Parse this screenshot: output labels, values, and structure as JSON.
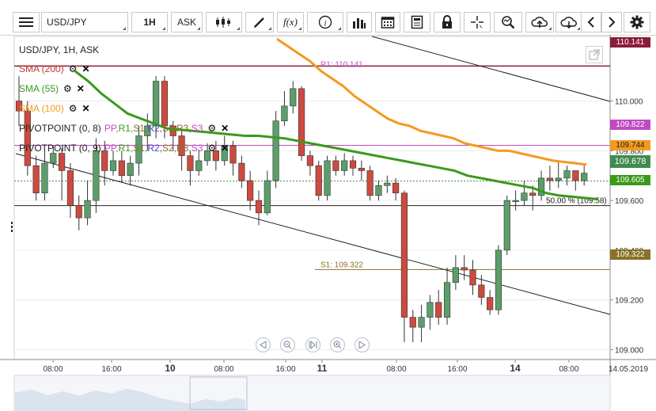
{
  "toolbar": {
    "symbol": "USD/JPY",
    "interval": "1H",
    "price_side": "ASK",
    "icons": [
      "menu-icon",
      "candles-icon",
      "draw-icon",
      "fx-icon",
      "info-icon",
      "bars-icon",
      "calendar-icon",
      "notes-icon",
      "lock-icon",
      "crosshair-icon",
      "zoom-icon",
      "upload-icon",
      "download-icon",
      "prev-icon",
      "next-icon",
      "settings-icon"
    ]
  },
  "legend": {
    "title": "USD/JPY, 1H, ASK",
    "sma200": "SMA (200)",
    "sma55": "SMA (55)",
    "sma100": "SMA (100)",
    "pivot1": "PIVOTPOINT (0, 8)",
    "pivot2": "PIVOTPOINT (0, 9)",
    "pivot_items": [
      "PP,",
      "R1,",
      "S1,",
      "R2,",
      "S2,",
      "R3,",
      "S3"
    ]
  },
  "colors": {
    "sma55": "#3a9a1a",
    "sma100": "#f39a1e",
    "sma200": "#c0392b",
    "bull": "#5c9e6a",
    "bear": "#cd4a3f",
    "pivot_r1": "#c04bc0",
    "pivot_s1": "#8a7128",
    "last_price": "#3f8a4c"
  },
  "price_tags": {
    "top": "110.141",
    "r1": "109.822",
    "sma100": "109.744",
    "last": "109.678",
    "sma55": "109.605",
    "s1": "109.322"
  },
  "annotations": {
    "s1_label": "S1: 109.322",
    "r1_label": "R1: 110.141",
    "fib_label": "50.00 % (109.58)"
  },
  "chart_data": {
    "type": "candlestick",
    "title": "USD/JPY, 1H, ASK",
    "y_ticks": [
      "110.000",
      "109.800",
      "109.600",
      "109.400",
      "109.200",
      "109.000"
    ],
    "ylim": [
      108.96,
      110.26
    ],
    "x_ticks": [
      "08:00",
      "16:00",
      "10",
      "08:00",
      "16:00",
      "11",
      "08:00",
      "16:00",
      "14",
      "08:00",
      "14.05.2019"
    ],
    "candles": [
      [
        110.0,
        109.96,
        110.1,
        109.9
      ],
      [
        109.96,
        109.74,
        110.0,
        109.7
      ],
      [
        109.74,
        109.63,
        109.78,
        109.6
      ],
      [
        109.63,
        109.75,
        109.8,
        109.6
      ],
      [
        109.75,
        109.79,
        109.82,
        109.73
      ],
      [
        109.79,
        109.72,
        109.81,
        109.6
      ],
      [
        109.72,
        109.58,
        109.75,
        109.53
      ],
      [
        109.58,
        109.53,
        109.62,
        109.48
      ],
      [
        109.53,
        109.6,
        109.68,
        109.5
      ],
      [
        109.6,
        109.8,
        109.85,
        109.55
      ],
      [
        109.8,
        109.72,
        109.84,
        109.66
      ],
      [
        109.72,
        109.76,
        109.8,
        109.7
      ],
      [
        109.76,
        109.7,
        109.8,
        109.67
      ],
      [
        109.7,
        109.75,
        109.78,
        109.66
      ],
      [
        109.75,
        109.86,
        109.9,
        109.7
      ],
      [
        109.86,
        109.9,
        109.95,
        109.8
      ],
      [
        109.9,
        110.08,
        110.1,
        109.85
      ],
      [
        110.08,
        109.9,
        110.1,
        109.85
      ],
      [
        109.9,
        109.86,
        109.92,
        109.8
      ],
      [
        109.86,
        109.78,
        109.88,
        109.72
      ],
      [
        109.78,
        109.72,
        109.8,
        109.66
      ],
      [
        109.72,
        109.76,
        109.8,
        109.7
      ],
      [
        109.76,
        109.8,
        109.83,
        109.74
      ],
      [
        109.8,
        109.76,
        109.84,
        109.72
      ],
      [
        109.76,
        109.82,
        109.86,
        109.74
      ],
      [
        109.82,
        109.75,
        109.84,
        109.7
      ],
      [
        109.75,
        109.68,
        109.78,
        109.65
      ],
      [
        109.68,
        109.6,
        109.72,
        109.56
      ],
      [
        109.6,
        109.55,
        109.64,
        109.5
      ],
      [
        109.55,
        109.68,
        109.72,
        109.54
      ],
      [
        109.68,
        109.92,
        109.96,
        109.65
      ],
      [
        109.92,
        109.98,
        110.04,
        109.9
      ],
      [
        109.98,
        110.05,
        110.08,
        109.95
      ],
      [
        110.05,
        109.78,
        110.06,
        109.76
      ],
      [
        109.78,
        109.74,
        109.8,
        109.7
      ],
      [
        109.74,
        109.62,
        109.76,
        109.6
      ],
      [
        109.62,
        109.76,
        109.78,
        109.6
      ],
      [
        109.76,
        109.72,
        109.78,
        109.7
      ],
      [
        109.72,
        109.76,
        109.79,
        109.7
      ],
      [
        109.76,
        109.73,
        109.78,
        109.7
      ],
      [
        109.73,
        109.72,
        109.76,
        109.68
      ],
      [
        109.72,
        109.62,
        109.74,
        109.6
      ],
      [
        109.62,
        109.66,
        109.68,
        109.6
      ],
      [
        109.66,
        109.67,
        109.7,
        109.63
      ],
      [
        109.67,
        109.63,
        109.69,
        109.6
      ],
      [
        109.63,
        109.13,
        109.64,
        109.03
      ],
      [
        109.13,
        109.09,
        109.16,
        109.03
      ],
      [
        109.09,
        109.13,
        109.18,
        109.03
      ],
      [
        109.13,
        109.19,
        109.22,
        109.08
      ],
      [
        109.19,
        109.13,
        109.24,
        109.1
      ],
      [
        109.13,
        109.27,
        109.33,
        109.1
      ],
      [
        109.27,
        109.33,
        109.38,
        109.24
      ],
      [
        109.33,
        109.32,
        109.38,
        109.28
      ],
      [
        109.32,
        109.26,
        109.36,
        109.22
      ],
      [
        109.26,
        109.21,
        109.3,
        109.18
      ],
      [
        109.21,
        109.16,
        109.24,
        109.14
      ],
      [
        109.16,
        109.4,
        109.42,
        109.14
      ],
      [
        109.4,
        109.6,
        109.62,
        109.38
      ],
      [
        109.6,
        109.6,
        109.64,
        109.56
      ],
      [
        109.6,
        109.63,
        109.68,
        109.58
      ],
      [
        109.63,
        109.62,
        109.66,
        109.56
      ],
      [
        109.62,
        109.69,
        109.72,
        109.6
      ],
      [
        109.69,
        109.68,
        109.74,
        109.64
      ],
      [
        109.68,
        109.69,
        109.76,
        109.65
      ],
      [
        109.69,
        109.72,
        109.74,
        109.66
      ],
      [
        109.72,
        109.68,
        109.72,
        109.64
      ],
      [
        109.68,
        109.71,
        109.74,
        109.66
      ]
    ],
    "sma55": [
      110.12,
      110.08,
      110.03,
      109.99,
      109.95,
      109.93,
      109.91,
      109.89,
      109.885,
      109.88,
      109.875,
      109.87,
      109.865,
      109.86,
      109.86,
      109.855,
      109.85,
      109.84,
      109.83,
      109.82,
      109.81,
      109.8,
      109.79,
      109.78,
      109.77,
      109.76,
      109.75,
      109.74,
      109.73,
      109.72,
      109.7,
      109.69,
      109.68,
      109.67,
      109.66,
      109.65,
      109.63,
      109.62,
      109.615,
      109.61,
      109.605
    ],
    "sma100": [
      110.25,
      110.22,
      110.19,
      110.16,
      110.12,
      110.09,
      110.06,
      110.02,
      109.99,
      109.96,
      109.93,
      109.91,
      109.9,
      109.88,
      109.87,
      109.86,
      109.85,
      109.83,
      109.82,
      109.81,
      109.8,
      109.8,
      109.79,
      109.78,
      109.77,
      109.76,
      109.755,
      109.75,
      109.744
    ],
    "s1": 109.322,
    "r1": 109.822,
    "top_level": 110.141,
    "last": 109.678
  }
}
